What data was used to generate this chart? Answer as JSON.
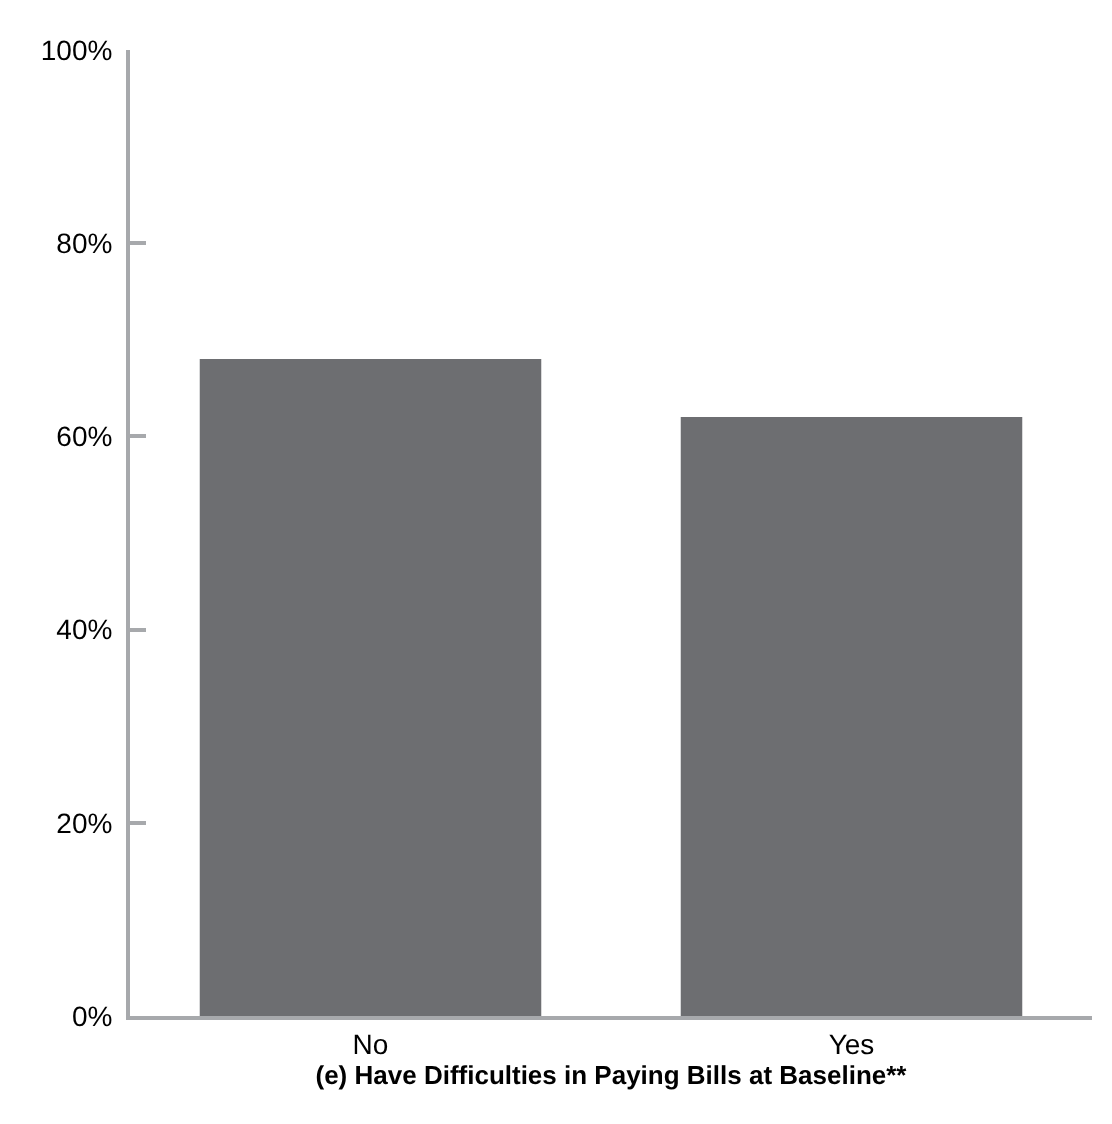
{
  "chart_data": {
    "type": "bar",
    "xlabel": "(e) Have Difficulties in Paying Bills at Baseline**",
    "categories": [
      "No",
      "Yes"
    ],
    "values": [
      68,
      62
    ],
    "color": "#6d6e71",
    "ylim": [
      0,
      100
    ],
    "yticks": [
      {
        "value": 0,
        "label": "0%"
      },
      {
        "value": 20,
        "label": "20%"
      },
      {
        "value": 40,
        "label": "40%"
      },
      {
        "value": 60,
        "label": "60%"
      },
      {
        "value": 80,
        "label": "80%"
      },
      {
        "value": 100,
        "label": "100%"
      }
    ]
  }
}
